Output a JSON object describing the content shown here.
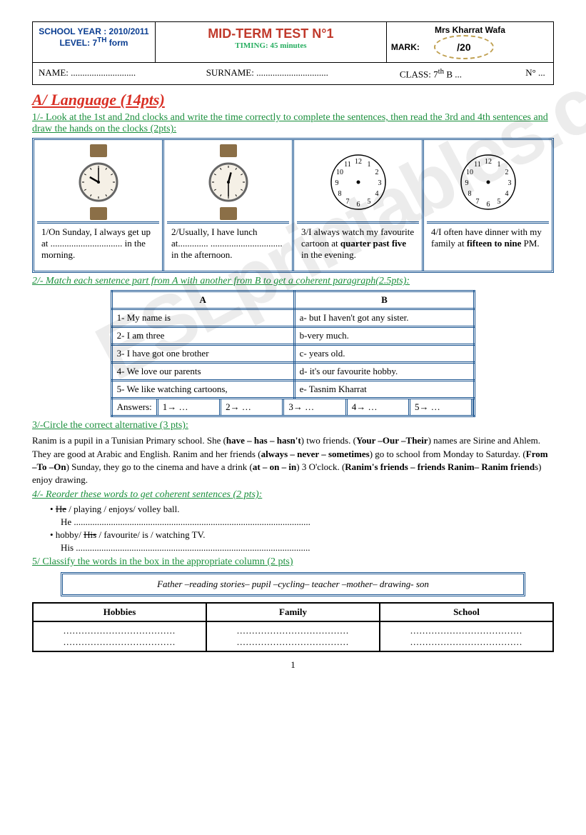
{
  "hdr": {
    "year": "SCHOOL YEAR : 2010/2011",
    "level": "LEVEL: 7",
    "level_sup": "TH",
    "level_suffix": " form",
    "title": "MID-TERM TEST N°1",
    "timing": "TIMING: 45 minutes",
    "teacher": "Mrs Kharrat Wafa",
    "mark_lbl": "MARK:",
    "mark_val": "/20",
    "name_lbl": "NAME: ............................",
    "surname_lbl": "SURNAME: ...............................",
    "class_lbl": "CLASS: 7",
    "class_sup": "th",
    "class_suffix": " B ...",
    "no_lbl": "N° ..."
  },
  "sec": {
    "h": "A/ Language (14pts)"
  },
  "q1": {
    "instr": "1/- Look at the 1st and 2nd clocks and write the time correctly to complete the sentences, then read the 3rd and 4th sentences and draw the hands on the clocks  (2pts):",
    "clocks": [
      {
        "type": "watch",
        "h": 10,
        "m": 0,
        "band": "#8b6f47",
        "desc": "1/On Sunday, I always get up at ............................... in the morning."
      },
      {
        "type": "watch",
        "h": 12,
        "m": 30,
        "band": "#8b6f47",
        "desc": "2/Usually, I have lunch at............. ............................... in the afternoon."
      },
      {
        "type": "blank",
        "desc_html": "3/I always watch my favourite cartoon at <b>quarter past five</b> in the evening."
      },
      {
        "type": "blank",
        "desc_html": "  4/I often have dinner with my family at <b>fifteen to nine</b> PM."
      }
    ]
  },
  "q2": {
    "instr": "2/- Match each sentence part from A with another from B to get a coherent paragraph(2.5pts):",
    "ha": "A",
    "hb": "B",
    "rows": [
      [
        "1- My name is",
        "a- but I haven't got any sister."
      ],
      [
        "2- I am three",
        "b-very much."
      ],
      [
        "3- I have got one brother",
        "c- years old."
      ],
      [
        "4- We love our parents",
        "d- it's our favourite hobby."
      ],
      [
        "5- We like watching cartoons,",
        "e- Tasnim Kharrat"
      ]
    ],
    "ans_lbl": "Answers:",
    "ans": [
      "1→ …",
      "2→ …",
      "3→ …",
      "4→ …",
      "5→ …"
    ]
  },
  "q3": {
    "instr": "3/-Circle the correct alternative (3 pts):",
    "text": "  Ranim is a pupil in a Tunisian Primary school. She (<b>have – has – hasn't</b>) two friends. (<b>Your –Our –Their</b>) names are Sirine and Ahlem. They are good at Arabic and English. Ranim and her friends (<b>always – never – sometimes</b>) go to school from Monday to Saturday. (<b>From –To –On</b>) Sunday, they go to the cinema and have a drink (<b>at – on – in</b>)    3 O'clock. (<b>Ranim's friends – friends Ranim– Ranim friend</b>s) enjoy drawing."
  },
  "q4": {
    "instr": "4/- Reorder these words to get coherent sentences (2 pts):",
    "items": [
      {
        "strike": "He",
        "rest": "/ playing / enjoys/ volley ball.",
        "ans": "He ......................................................................................................"
      },
      {
        "pre": "hobby/ ",
        "strike": "His",
        "rest": " / favourite/ is / watching TV.",
        "ans": "His ....................................................................................................."
      }
    ]
  },
  "q5": {
    "instr": "5/ Classify the words in the box in the appropriate column (2 pts)",
    "box": "Father –reading stories– pupil –cycling– teacher –mother– drawing- son",
    "cols": [
      "Hobbies",
      "Family",
      "School"
    ],
    "dots": "....................................."
  },
  "pgnum": "1",
  "wm": "ESLprintables.com"
}
